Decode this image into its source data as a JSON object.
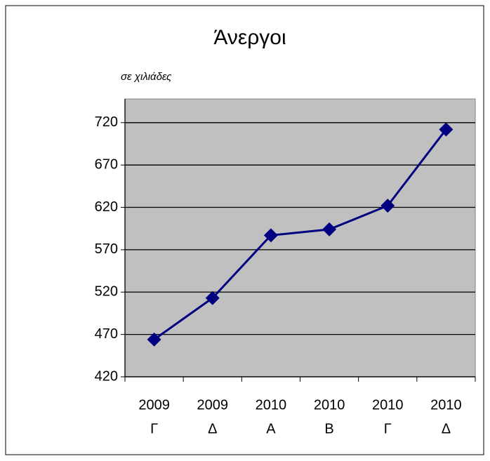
{
  "chart_data": {
    "type": "line",
    "title": "Άνεργοι",
    "subtitle": "σε χιλιάδες",
    "categories": [
      [
        "2009",
        "Γ"
      ],
      [
        "2009",
        "Δ"
      ],
      [
        "2010",
        "Α"
      ],
      [
        "2010",
        "Β"
      ],
      [
        "2010",
        "Γ"
      ],
      [
        "2010",
        "Δ"
      ]
    ],
    "series": [
      {
        "color": "#000080",
        "values": [
          464,
          513,
          587,
          594,
          622,
          712
        ]
      }
    ],
    "ylim": [
      420,
      748
    ],
    "yticks": [
      420,
      470,
      520,
      570,
      620,
      670,
      720
    ],
    "grid": true
  }
}
